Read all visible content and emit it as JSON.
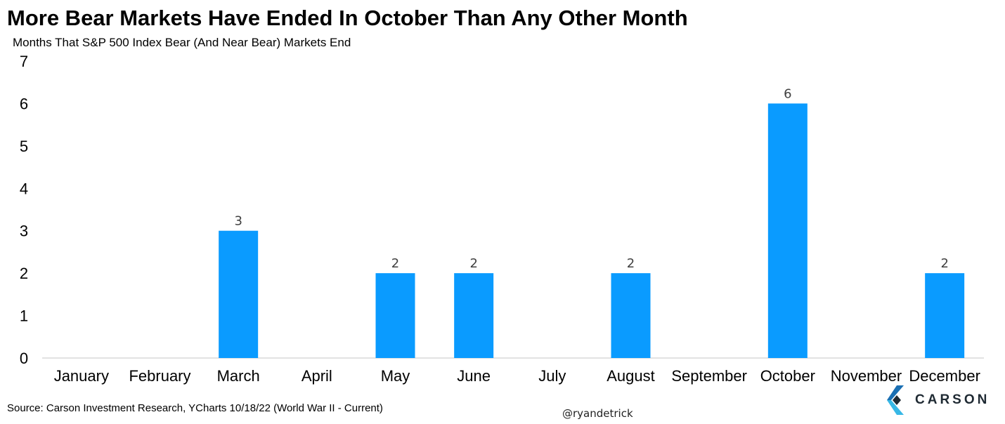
{
  "title": "More Bear Markets Have Ended In October Than Any Other Month",
  "subtitle": "Months That S&P 500 Index Bear (And Near Bear) Markets End",
  "source": "Source: Carson Investment Research, YCharts 10/18/22 (World War II - Current)",
  "handle": "@ryandetrick",
  "brand": {
    "name": "CARSON",
    "logo_icon": "carson-chevron-logo-icon",
    "mark_colors": [
      "#1a6fb3",
      "#38b8e6",
      "#1f2a33"
    ]
  },
  "colors": {
    "bar": "#0a9bff",
    "axis": "#d9d9d9",
    "label": "#404040"
  },
  "chart_data": {
    "type": "bar",
    "title": "More Bear Markets Have Ended In October Than Any Other Month",
    "subtitle": "Months That S&P 500 Index Bear (And Near Bear) Markets End",
    "categories": [
      "January",
      "February",
      "March",
      "April",
      "May",
      "June",
      "July",
      "August",
      "September",
      "October",
      "November",
      "December"
    ],
    "values": [
      0,
      0,
      3,
      0,
      2,
      2,
      0,
      2,
      0,
      6,
      0,
      2
    ],
    "data_labels": [
      "",
      "",
      "3",
      "",
      "2",
      "2",
      "",
      "2",
      "",
      "6",
      "",
      "2"
    ],
    "ylim": [
      0,
      7
    ],
    "yticks": [
      "0",
      "1",
      "2",
      "3",
      "4",
      "5",
      "6",
      "7"
    ],
    "xlabel": "",
    "ylabel": "",
    "grid": false,
    "legend": "none"
  }
}
